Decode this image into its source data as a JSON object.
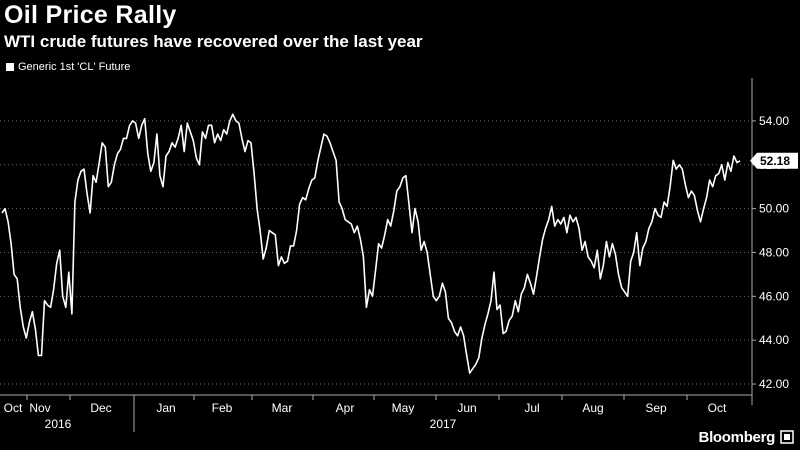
{
  "header": {
    "title": "Oil Price Rally",
    "subtitle": "WTI crude futures have recovered over the last year"
  },
  "brand": {
    "name": "Bloomberg",
    "icon": "bloomberg-logo-icon"
  },
  "colors": {
    "background": "#000000",
    "line": "#ffffff",
    "text": "#ffffff"
  },
  "chart_data": {
    "type": "line",
    "title": "Oil Price Rally",
    "subtitle": "WTI crude futures have recovered over the last year",
    "xlabel": "",
    "ylabel": "",
    "legend": {
      "position": "top-left",
      "entries": [
        "Generic 1st 'CL' Future"
      ]
    },
    "grid": "horizontal-dotted",
    "ylim": [
      41.5,
      55.5
    ],
    "y_ticks": [
      "54.00",
      "52.00",
      "50.00",
      "48.00",
      "46.00",
      "44.00",
      "42.00"
    ],
    "x_tick_labels": [
      "Oct",
      "Nov",
      "Dec",
      "Jan",
      "Feb",
      "Mar",
      "Apr",
      "May",
      "Jun",
      "Jul",
      "Aug",
      "Sep",
      "Oct"
    ],
    "x_year_labels": [
      "2016",
      "2017"
    ],
    "last_value_label": "52.18",
    "series": [
      {
        "name": "Generic 1st 'CL' Future",
        "values": [
          49.8,
          50.0,
          49.4,
          48.4,
          47.0,
          46.8,
          45.5,
          44.6,
          44.1,
          44.8,
          45.3,
          44.5,
          43.3,
          43.3,
          45.8,
          45.6,
          45.5,
          46.3,
          47.5,
          48.1,
          46.0,
          45.5,
          47.1,
          45.2,
          50.3,
          51.3,
          51.7,
          51.8,
          50.7,
          49.8,
          51.5,
          51.2,
          52.1,
          53.0,
          52.8,
          51.0,
          51.2,
          52.0,
          52.5,
          52.7,
          53.2,
          53.2,
          53.8,
          54.0,
          53.9,
          53.2,
          53.8,
          54.1,
          52.5,
          51.7,
          52.1,
          53.4,
          51.5,
          51.0,
          52.4,
          52.6,
          53.0,
          52.8,
          53.2,
          53.8,
          52.6,
          53.9,
          53.5,
          53.1,
          52.3,
          52.0,
          53.5,
          53.2,
          53.8,
          53.8,
          53.0,
          53.4,
          53.1,
          53.6,
          53.4,
          54.0,
          54.3,
          54.0,
          53.9,
          53.2,
          52.6,
          53.1,
          53.0,
          51.6,
          50.0,
          49.0,
          47.7,
          48.2,
          49.0,
          48.9,
          48.8,
          47.4,
          47.8,
          47.5,
          47.6,
          48.3,
          48.3,
          49.0,
          50.2,
          50.5,
          50.4,
          50.9,
          51.3,
          51.4,
          52.2,
          52.8,
          53.4,
          53.3,
          53.0,
          52.6,
          52.2,
          50.3,
          50.0,
          49.5,
          49.4,
          49.3,
          48.9,
          49.2,
          48.6,
          47.8,
          45.5,
          46.3,
          46.0,
          47.2,
          48.4,
          48.2,
          48.8,
          49.5,
          49.2,
          49.9,
          50.8,
          51.0,
          51.4,
          51.5,
          50.2,
          48.9,
          50.0,
          49.4,
          48.1,
          48.5,
          48.0,
          47.0,
          46.0,
          45.8,
          46.0,
          46.6,
          46.2,
          45.0,
          44.8,
          44.4,
          44.2,
          44.6,
          44.2,
          43.3,
          42.5,
          42.7,
          42.9,
          43.2,
          44.1,
          44.7,
          45.2,
          45.8,
          47.1,
          45.4,
          45.6,
          44.3,
          44.4,
          44.9,
          45.1,
          45.8,
          45.3,
          46.1,
          46.4,
          47.0,
          46.6,
          46.1,
          46.9,
          47.8,
          48.6,
          49.1,
          49.5,
          50.1,
          49.2,
          49.5,
          49.3,
          49.6,
          48.9,
          49.7,
          49.4,
          49.6,
          49.1,
          48.1,
          48.5,
          47.8,
          47.6,
          47.3,
          48.1,
          46.8,
          47.4,
          48.5,
          47.8,
          48.4,
          47.9,
          47.0,
          46.4,
          46.2,
          46.0,
          47.6,
          48.0,
          48.9,
          47.4,
          48.2,
          48.5,
          49.1,
          49.4,
          50.0,
          49.7,
          49.6,
          50.3,
          50.1,
          51.0,
          52.2,
          51.8,
          52.0,
          51.8,
          51.1,
          50.5,
          50.8,
          50.6,
          49.9,
          49.4,
          50.0,
          50.5,
          51.3,
          51.0,
          51.5,
          51.6,
          52.0,
          51.3,
          52.1,
          51.7,
          52.4,
          52.1,
          52.18
        ]
      }
    ]
  }
}
